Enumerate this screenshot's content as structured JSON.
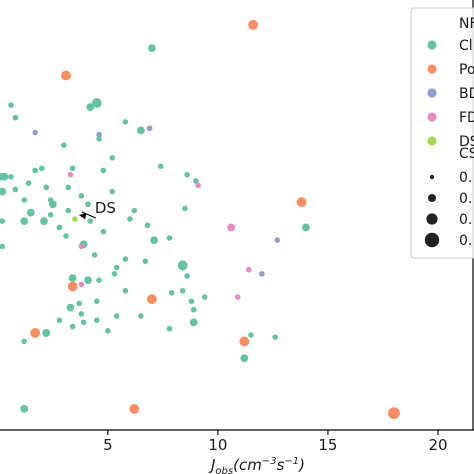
{
  "chart_data": {
    "type": "scatter",
    "xlabel_parts": {
      "base": "J",
      "sub": "obs",
      "open": "(cm",
      "sup1": "−3",
      "mid": "s",
      "sup2": "−1",
      "close": ")"
    },
    "xticks": [
      5,
      10,
      15,
      20
    ],
    "xlim": [
      0.1,
      20.0
    ],
    "ylim": [
      0.0,
      1.0
    ],
    "grid": false,
    "legend_position": "right, clipped by image edge",
    "legend": {
      "title_hue": "NF",
      "hue_entries": [
        {
          "label": "Cl",
          "color": "#66c2a5"
        },
        {
          "label": "Po",
          "color": "#fc8d62"
        },
        {
          "label": "BD",
          "color": "#8da0cb"
        },
        {
          "label": "FD",
          "color": "#e78ac3"
        },
        {
          "label": "DS",
          "color": "#a6d854"
        }
      ],
      "title_size": "CS",
      "size_entries": [
        {
          "label": "0.",
          "size_level": 1
        },
        {
          "label": "0.",
          "size_level": 2
        },
        {
          "label": "0.",
          "size_level": 3
        },
        {
          "label": "0.",
          "size_level": 4
        }
      ]
    },
    "annotation": {
      "text": "DS",
      "target_x": 3.5,
      "target_y": 0.5
    },
    "series": [
      {
        "name": "Cl",
        "color": "#66c2a5",
        "points": [
          {
            "x": 7.0,
            "y": 0.905,
            "s": 2
          },
          {
            "x": 4.2,
            "y": 0.765,
            "s": 2
          },
          {
            "x": 4.5,
            "y": 0.775,
            "s": 3
          },
          {
            "x": 0.6,
            "y": 0.77,
            "s": 1
          },
          {
            "x": 0.8,
            "y": 0.74,
            "s": 1
          },
          {
            "x": 5.8,
            "y": 0.73,
            "s": 1
          },
          {
            "x": 6.5,
            "y": 0.71,
            "s": 2
          },
          {
            "x": 4.6,
            "y": 0.69,
            "s": 1
          },
          {
            "x": 3.0,
            "y": 0.675,
            "s": 1
          },
          {
            "x": 5.2,
            "y": 0.645,
            "s": 1
          },
          {
            "x": 0.1,
            "y": 0.6,
            "s": 2
          },
          {
            "x": 0.3,
            "y": 0.6,
            "s": 2
          },
          {
            "x": 0.6,
            "y": 0.6,
            "s": 1
          },
          {
            "x": 1.7,
            "y": 0.615,
            "s": 1
          },
          {
            "x": 2.0,
            "y": 0.62,
            "s": 1
          },
          {
            "x": 3.4,
            "y": 0.62,
            "s": 1
          },
          {
            "x": 4.8,
            "y": 0.615,
            "s": 1
          },
          {
            "x": 7.4,
            "y": 0.625,
            "s": 1
          },
          {
            "x": 8.6,
            "y": 0.605,
            "s": 1
          },
          {
            "x": 9.0,
            "y": 0.59,
            "s": 1
          },
          {
            "x": 0.2,
            "y": 0.565,
            "s": 2
          },
          {
            "x": 0.8,
            "y": 0.57,
            "s": 1
          },
          {
            "x": 1.4,
            "y": 0.585,
            "s": 1
          },
          {
            "x": 2.2,
            "y": 0.575,
            "s": 1
          },
          {
            "x": 3.2,
            "y": 0.575,
            "s": 1
          },
          {
            "x": 5.2,
            "y": 0.565,
            "s": 1
          },
          {
            "x": 1.2,
            "y": 0.545,
            "s": 1
          },
          {
            "x": 2.4,
            "y": 0.545,
            "s": 1
          },
          {
            "x": 3.8,
            "y": 0.555,
            "s": 1
          },
          {
            "x": 2.5,
            "y": 0.535,
            "s": 2
          },
          {
            "x": 4.1,
            "y": 0.535,
            "s": 1
          },
          {
            "x": 1.5,
            "y": 0.515,
            "s": 2
          },
          {
            "x": 2.4,
            "y": 0.51,
            "s": 1
          },
          {
            "x": 3.2,
            "y": 0.52,
            "s": 1
          },
          {
            "x": 6.2,
            "y": 0.52,
            "s": 1
          },
          {
            "x": 8.5,
            "y": 0.525,
            "s": 1
          },
          {
            "x": 0.2,
            "y": 0.495,
            "s": 1
          },
          {
            "x": 1.2,
            "y": 0.495,
            "s": 2
          },
          {
            "x": 2.1,
            "y": 0.495,
            "s": 2
          },
          {
            "x": 2.8,
            "y": 0.48,
            "s": 1
          },
          {
            "x": 4.2,
            "y": 0.495,
            "s": 1
          },
          {
            "x": 6.0,
            "y": 0.5,
            "s": 1
          },
          {
            "x": 6.8,
            "y": 0.485,
            "s": 1
          },
          {
            "x": 14.0,
            "y": 0.48,
            "s": 2
          },
          {
            "x": 3.1,
            "y": 0.46,
            "s": 1
          },
          {
            "x": 4.8,
            "y": 0.47,
            "s": 1
          },
          {
            "x": 7.1,
            "y": 0.45,
            "s": 2
          },
          {
            "x": 7.8,
            "y": 0.455,
            "s": 1
          },
          {
            "x": 0.2,
            "y": 0.435,
            "s": 1
          },
          {
            "x": 3.9,
            "y": 0.44,
            "s": 2
          },
          {
            "x": 4.4,
            "y": 0.415,
            "s": 1
          },
          {
            "x": 5.8,
            "y": 0.405,
            "s": 1
          },
          {
            "x": 6.7,
            "y": 0.4,
            "s": 1
          },
          {
            "x": 5.4,
            "y": 0.385,
            "s": 1
          },
          {
            "x": 8.4,
            "y": 0.39,
            "s": 3
          },
          {
            "x": 8.6,
            "y": 0.365,
            "s": 1
          },
          {
            "x": 3.4,
            "y": 0.36,
            "s": 2
          },
          {
            "x": 4.1,
            "y": 0.355,
            "s": 2
          },
          {
            "x": 4.6,
            "y": 0.355,
            "s": 1
          },
          {
            "x": 5.3,
            "y": 0.37,
            "s": 1
          },
          {
            "x": 5.8,
            "y": 0.33,
            "s": 1
          },
          {
            "x": 7.9,
            "y": 0.325,
            "s": 1
          },
          {
            "x": 8.4,
            "y": 0.33,
            "s": 1
          },
          {
            "x": 9.4,
            "y": 0.315,
            "s": 1
          },
          {
            "x": 4.5,
            "y": 0.305,
            "s": 1
          },
          {
            "x": 3.3,
            "y": 0.29,
            "s": 2
          },
          {
            "x": 3.7,
            "y": 0.3,
            "s": 1
          },
          {
            "x": 8.8,
            "y": 0.305,
            "s": 1
          },
          {
            "x": 8.9,
            "y": 0.285,
            "s": 1
          },
          {
            "x": 3.8,
            "y": 0.275,
            "s": 1
          },
          {
            "x": 2.8,
            "y": 0.26,
            "s": 1
          },
          {
            "x": 3.9,
            "y": 0.255,
            "s": 1
          },
          {
            "x": 4.5,
            "y": 0.26,
            "s": 1
          },
          {
            "x": 5.4,
            "y": 0.27,
            "s": 1
          },
          {
            "x": 6.5,
            "y": 0.27,
            "s": 1
          },
          {
            "x": 8.9,
            "y": 0.255,
            "s": 2
          },
          {
            "x": 2.2,
            "y": 0.23,
            "s": 2
          },
          {
            "x": 3.4,
            "y": 0.245,
            "s": 1
          },
          {
            "x": 5.0,
            "y": 0.235,
            "s": 1
          },
          {
            "x": 7.8,
            "y": 0.24,
            "s": 1
          },
          {
            "x": 11.5,
            "y": 0.225,
            "s": 1
          },
          {
            "x": 12.6,
            "y": 0.22,
            "s": 1
          },
          {
            "x": 1.2,
            "y": 0.21,
            "s": 1
          },
          {
            "x": 11.2,
            "y": 0.17,
            "s": 2
          },
          {
            "x": 1.2,
            "y": 0.05,
            "s": 2
          }
        ]
      },
      {
        "name": "Po",
        "color": "#fc8d62",
        "points": [
          {
            "x": 11.6,
            "y": 0.96,
            "s": 3
          },
          {
            "x": 3.1,
            "y": 0.84,
            "s": 3
          },
          {
            "x": 13.8,
            "y": 0.54,
            "s": 3
          },
          {
            "x": 3.4,
            "y": 0.34,
            "s": 3
          },
          {
            "x": 7.0,
            "y": 0.31,
            "s": 3
          },
          {
            "x": 1.7,
            "y": 0.23,
            "s": 3
          },
          {
            "x": 11.2,
            "y": 0.21,
            "s": 3
          },
          {
            "x": 6.2,
            "y": 0.05,
            "s": 3
          },
          {
            "x": 18.0,
            "y": 0.04,
            "s": 4
          }
        ]
      },
      {
        "name": "BD",
        "color": "#8da0cb",
        "points": [
          {
            "x": 1.7,
            "y": 0.705,
            "s": 1
          },
          {
            "x": 6.9,
            "y": 0.715,
            "s": 1
          },
          {
            "x": 4.6,
            "y": 0.7,
            "s": 1
          },
          {
            "x": 12.0,
            "y": 0.37,
            "s": 1
          },
          {
            "x": 12.7,
            "y": 0.45,
            "s": 1
          }
        ]
      },
      {
        "name": "FD",
        "color": "#e78ac3",
        "points": [
          {
            "x": 3.3,
            "y": 0.605,
            "s": 1
          },
          {
            "x": 9.1,
            "y": 0.58,
            "s": 1
          },
          {
            "x": 10.6,
            "y": 0.48,
            "s": 2
          },
          {
            "x": 3.8,
            "y": 0.435,
            "s": 1
          },
          {
            "x": 11.4,
            "y": 0.38,
            "s": 1
          },
          {
            "x": 3.8,
            "y": 0.345,
            "s": 1
          },
          {
            "x": 10.9,
            "y": 0.315,
            "s": 1
          }
        ]
      },
      {
        "name": "DS",
        "color": "#a6d854",
        "points": [
          {
            "x": 3.5,
            "y": 0.5,
            "s": 1
          }
        ]
      }
    ]
  }
}
